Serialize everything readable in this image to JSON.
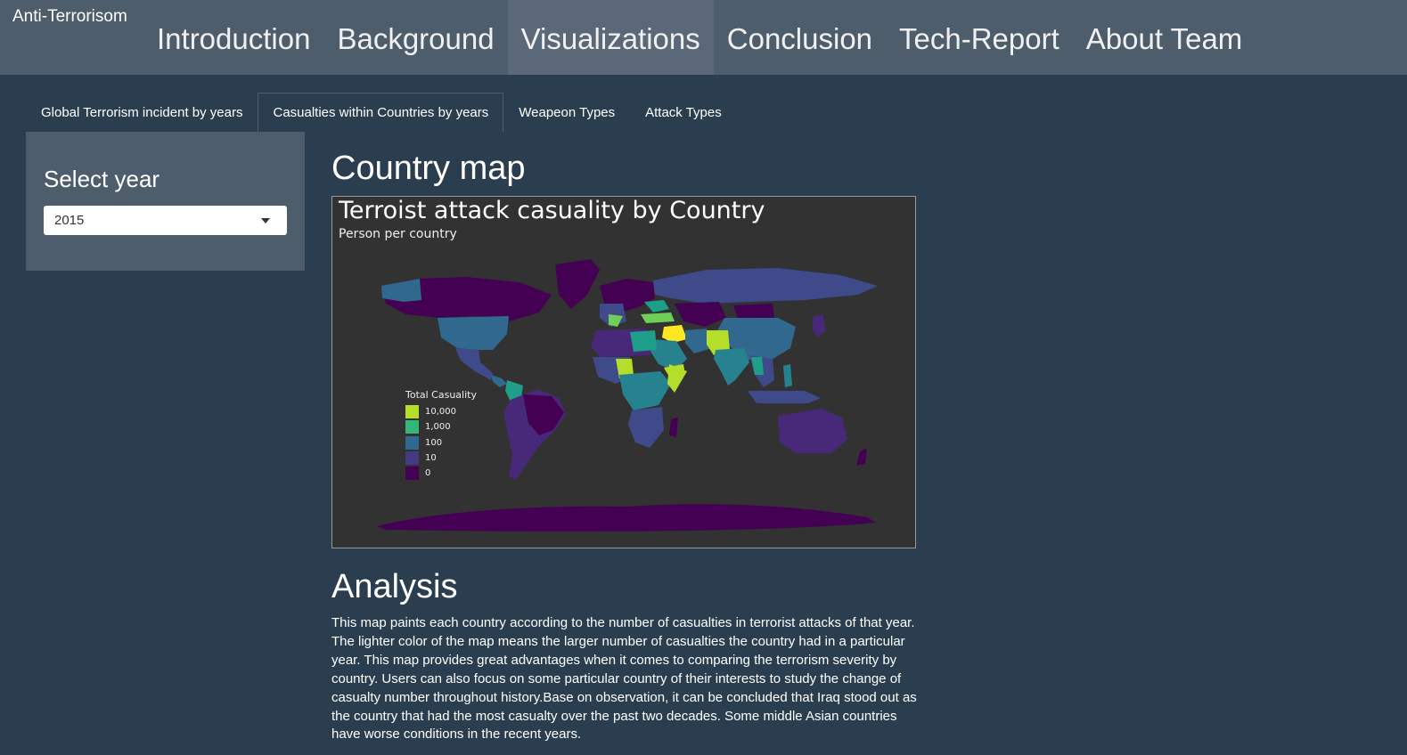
{
  "navbar": {
    "brand": "Anti-Terrorisom",
    "items": [
      {
        "label": "Introduction",
        "active": false
      },
      {
        "label": "Background",
        "active": false
      },
      {
        "label": "Visualizations",
        "active": true
      },
      {
        "label": "Conclusion",
        "active": false
      },
      {
        "label": "Tech-Report",
        "active": false
      },
      {
        "label": "About Team",
        "active": false
      }
    ]
  },
  "tabs": [
    {
      "label": "Global Terrorism incident by years",
      "active": false
    },
    {
      "label": "Casualties within Countries by years",
      "active": true
    },
    {
      "label": "Weapeon Types",
      "active": false
    },
    {
      "label": "Attack Types",
      "active": false
    }
  ],
  "sidebar": {
    "label": "Select year",
    "select_value": "2015"
  },
  "main": {
    "map_heading": "Country map",
    "analysis_heading": "Analysis",
    "analysis_text": "This map paints each country according to the number of casualties in terrorist attacks of that year. The lighter color of the map means the larger number of casualties the country had in a particular year. This map provides great advantages when it comes to comparing the terrorism severity by country. Users can also focus on some particular country of their interests to study the change of casualty number throughout history.Base on observation, it can be concluded that Iraq stood out as the country that had the most casualty over the past two decades. Some middle Asian countries have worse conditions in the recent years."
  },
  "chart_data": {
    "type": "choropleth-map",
    "title": "Terroist attack casuality by Country",
    "subtitle": "Person per country",
    "legend": {
      "title": "Total Casuality",
      "placement": "left",
      "entries": [
        {
          "label": "10,000",
          "color": "#b5de2b"
        },
        {
          "label": "1,000",
          "color": "#35b779"
        },
        {
          "label": "100",
          "color": "#31688e"
        },
        {
          "label": "10",
          "color": "#443a83"
        },
        {
          "label": "0",
          "color": "#440154"
        }
      ]
    },
    "colors": {
      "background": "#323232",
      "highest": "#fde725",
      "very_high": "#b5de2b",
      "high": "#6ece58",
      "mid_high": "#35b779",
      "mid": "#1f9e89",
      "mid_low": "#26828e",
      "low": "#31688e",
      "lower": "#3e4a89",
      "very_low": "#482878",
      "none": "#440154"
    }
  }
}
